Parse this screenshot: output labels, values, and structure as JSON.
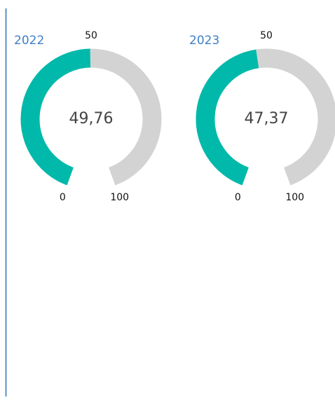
{
  "chart_data": [
    {
      "type": "gauge",
      "title": "2022",
      "values": [
        49.76
      ],
      "value_labels": [
        "49,76"
      ],
      "ylim": [
        0,
        100
      ],
      "yticks": [
        0,
        50,
        100
      ],
      "color": "#00b9aa",
      "track_color": "#d3d3d3"
    },
    {
      "type": "gauge",
      "title": "2023",
      "values": [
        47.37
      ],
      "value_labels": [
        "47,37"
      ],
      "ylim": [
        0,
        100
      ],
      "yticks": [
        0,
        50,
        100
      ],
      "color": "#00b9aa",
      "track_color": "#d3d3d3"
    }
  ]
}
